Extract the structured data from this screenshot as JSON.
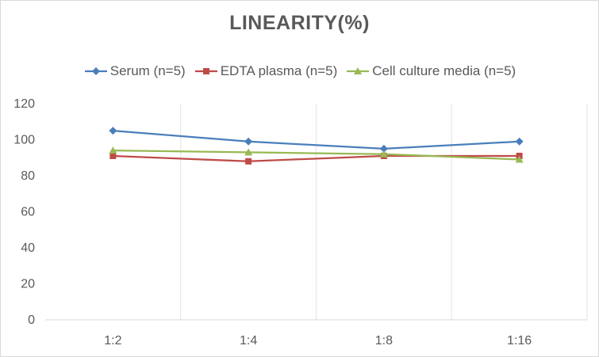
{
  "chart_data": {
    "type": "line",
    "title": "LINEARITY(%)",
    "xlabel": "",
    "ylabel": "",
    "categories": [
      "1:2",
      "1:4",
      "1:8",
      "1:16"
    ],
    "ylim": [
      0,
      120
    ],
    "yticks": [
      0,
      20,
      40,
      60,
      80,
      100,
      120
    ],
    "grid": "vertical",
    "legend_position": "top",
    "series": [
      {
        "name": "Serum (n=5)",
        "values": [
          105,
          99,
          95,
          99
        ],
        "color": "#4a7ebb",
        "marker": "diamond"
      },
      {
        "name": "EDTA plasma (n=5)",
        "values": [
          91,
          88,
          91,
          91
        ],
        "color": "#be4b48",
        "marker": "square"
      },
      {
        "name": "Cell culture media (n=5)",
        "values": [
          94,
          93,
          92,
          89
        ],
        "color": "#98b954",
        "marker": "triangle"
      }
    ]
  }
}
